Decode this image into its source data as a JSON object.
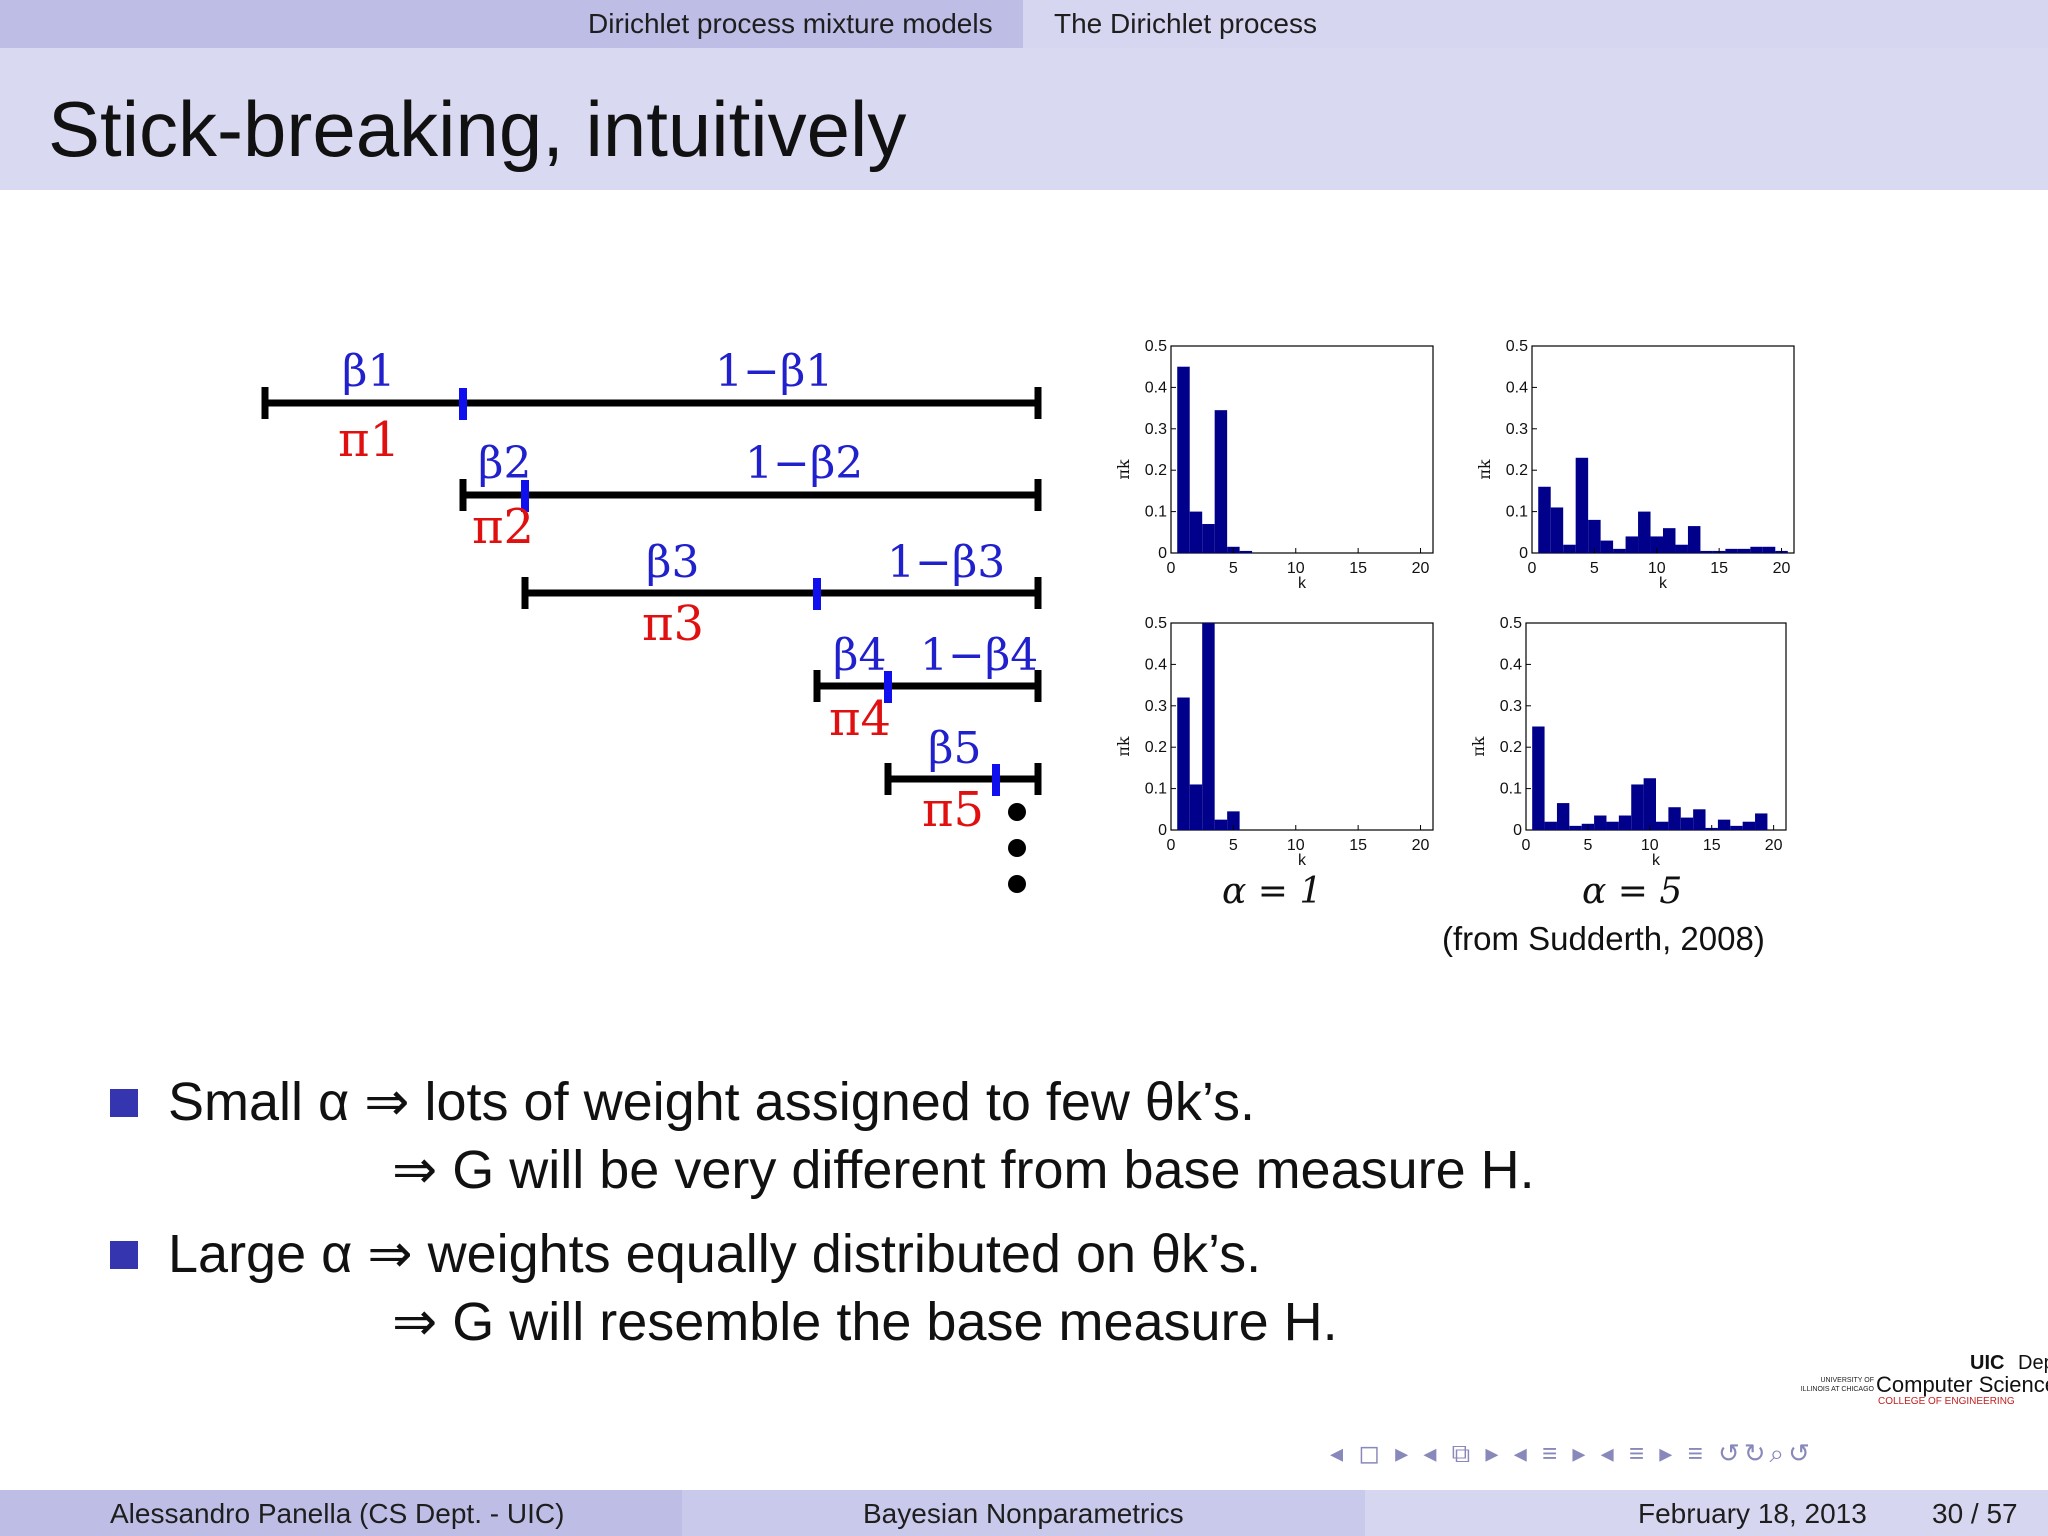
{
  "nav": {
    "section": "Dirichlet process mixture models",
    "subsection": "The Dirichlet process"
  },
  "title": "Stick-breaking, intuitively",
  "stick_diagram": {
    "beta_labels": [
      "β1",
      "β2",
      "β3",
      "β4",
      "β5"
    ],
    "one_minus_beta_labels": [
      "1−β1",
      "1−β2",
      "1−β3",
      "1−β4"
    ],
    "pi_labels": [
      "π1",
      "π2",
      "π3",
      "π4",
      "π5"
    ],
    "colors": {
      "stick": "#000000",
      "break": "#1010ee",
      "beta": "#2020cc",
      "pi": "#e01010"
    }
  },
  "chart_data": [
    {
      "type": "bar",
      "panel": "alpha=1 top",
      "x": [
        1,
        2,
        3,
        4,
        5,
        6,
        7,
        8,
        9,
        10,
        11,
        12,
        13,
        14,
        15,
        16,
        17,
        18,
        19,
        20,
        21
      ],
      "values": [
        0.45,
        0.1,
        0.07,
        0.345,
        0.015,
        0.005,
        0,
        0,
        0,
        0,
        0,
        0,
        0,
        0,
        0,
        0,
        0,
        0,
        0,
        0,
        0
      ],
      "xlabel": "k",
      "ylabel": "πk",
      "xlim": [
        0,
        21
      ],
      "ylim": [
        0,
        0.5
      ],
      "xticks": [
        "0",
        "5",
        "10",
        "15",
        "20"
      ],
      "yticks": [
        "0",
        "0.1",
        "0.2",
        "0.3",
        "0.4",
        "0.5"
      ]
    },
    {
      "type": "bar",
      "panel": "alpha=5 top",
      "x": [
        1,
        2,
        3,
        4,
        5,
        6,
        7,
        8,
        9,
        10,
        11,
        12,
        13,
        14,
        15,
        16,
        17,
        18,
        19,
        20,
        21
      ],
      "values": [
        0.16,
        0.11,
        0.02,
        0.23,
        0.08,
        0.03,
        0.01,
        0.04,
        0.1,
        0.04,
        0.06,
        0.02,
        0.065,
        0.005,
        0.005,
        0.01,
        0.01,
        0.015,
        0.015,
        0.005,
        0
      ],
      "xlabel": "k",
      "ylabel": "πk",
      "xlim": [
        0,
        21
      ],
      "ylim": [
        0,
        0.5
      ],
      "xticks": [
        "0",
        "5",
        "10",
        "15",
        "20"
      ],
      "yticks": [
        "0",
        "0.1",
        "0.2",
        "0.3",
        "0.4",
        "0.5"
      ]
    },
    {
      "type": "bar",
      "panel": "alpha=1 bottom",
      "x": [
        1,
        2,
        3,
        4,
        5,
        6,
        7,
        8,
        9,
        10,
        11,
        12,
        13,
        14,
        15,
        16,
        17,
        18,
        19,
        20,
        21
      ],
      "values": [
        0.32,
        0.11,
        0.5,
        0.025,
        0.045,
        0,
        0,
        0,
        0,
        0,
        0,
        0,
        0,
        0,
        0,
        0,
        0,
        0,
        0,
        0,
        0
      ],
      "xlabel": "k",
      "ylabel": "πk",
      "xlim": [
        0,
        21
      ],
      "ylim": [
        0,
        0.5
      ],
      "xticks": [
        "0",
        "5",
        "10",
        "15",
        "20"
      ],
      "yticks": [
        "0",
        "0.1",
        "0.2",
        "0.3",
        "0.4",
        "0.5"
      ]
    },
    {
      "type": "bar",
      "panel": "alpha=5 bottom",
      "x": [
        1,
        2,
        3,
        4,
        5,
        6,
        7,
        8,
        9,
        10,
        11,
        12,
        13,
        14,
        15,
        16,
        17,
        18,
        19,
        20,
        21
      ],
      "values": [
        0.25,
        0.02,
        0.065,
        0.01,
        0.015,
        0.035,
        0.02,
        0.035,
        0.11,
        0.125,
        0.02,
        0.055,
        0.03,
        0.05,
        0.005,
        0.025,
        0.01,
        0.02,
        0.04,
        0,
        0
      ],
      "xlabel": "k",
      "ylabel": "πk",
      "xlim": [
        0,
        21
      ],
      "ylim": [
        0,
        0.5
      ],
      "xticks": [
        "0",
        "5",
        "10",
        "15",
        "20"
      ],
      "yticks": [
        "0",
        "0.1",
        "0.2",
        "0.3",
        "0.4",
        "0.5"
      ]
    }
  ],
  "chart_captions": {
    "left": "α = 1",
    "right": "α = 5",
    "source": "(from Sudderth, 2008)"
  },
  "bar_color": "#00008b",
  "bullets": [
    {
      "alpha_part": "Small α ⇒ lots of weight assigned to few θk’s.",
      "cont": "⇒ G will be very different from base measure H."
    },
    {
      "alpha_part": "Large α ⇒ weights equally distributed on θk’s.",
      "cont": "⇒ G will resemble the base measure H."
    }
  ],
  "logo": {
    "uic": "UIC",
    "dept": "Department of",
    "cs": "Computer Science",
    "small": "UNIVERSITY OF ILLINOIS AT CHICAGO",
    "coe": "COLLEGE OF ENGINEERING"
  },
  "nav_symbols": "◂ ◻ ▸ ◂ ⧉ ▸ ◂ ≡ ▸ ◂ ≡ ▸ ≡ ↺↻⌕↺",
  "footer": {
    "author": "Alessandro Panella  (CS Dept. - UIC)",
    "talk": "Bayesian Nonparametrics",
    "date": "February 18, 2013",
    "page": "30 / 57"
  }
}
